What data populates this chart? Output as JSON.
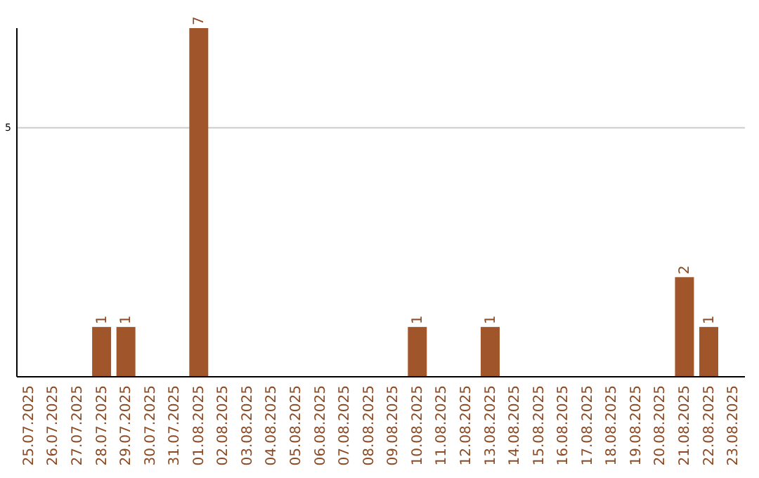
{
  "chart_data": {
    "type": "bar",
    "categories": [
      "25.07.2025",
      "26.07.2025",
      "27.07.2025",
      "28.07.2025",
      "29.07.2025",
      "30.07.2025",
      "31.07.2025",
      "01.08.2025",
      "02.08.2025",
      "03.08.2025",
      "04.08.2025",
      "05.08.2025",
      "06.08.2025",
      "07.08.2025",
      "08.08.2025",
      "09.08.2025",
      "10.08.2025",
      "11.08.2025",
      "12.08.2025",
      "13.08.2025",
      "14.08.2025",
      "15.08.2025",
      "16.08.2025",
      "17.08.2025",
      "18.08.2025",
      "19.08.2025",
      "20.08.2025",
      "21.08.2025",
      "22.08.2025",
      "23.08.2025"
    ],
    "values": [
      0,
      0,
      0,
      1,
      1,
      0,
      0,
      7,
      0,
      0,
      0,
      0,
      0,
      0,
      0,
      0,
      1,
      0,
      0,
      1,
      0,
      0,
      0,
      0,
      0,
      0,
      0,
      2,
      1,
      0
    ],
    "value_labels": [
      null,
      null,
      null,
      "1",
      "1",
      null,
      null,
      "7",
      null,
      null,
      null,
      null,
      null,
      null,
      null,
      null,
      "1",
      null,
      null,
      "1",
      null,
      null,
      null,
      null,
      null,
      null,
      null,
      "2",
      "1",
      null
    ],
    "color": "#a0552a",
    "ylim": [
      0,
      7
    ],
    "yticks": [
      5
    ],
    "grid": "y"
  }
}
